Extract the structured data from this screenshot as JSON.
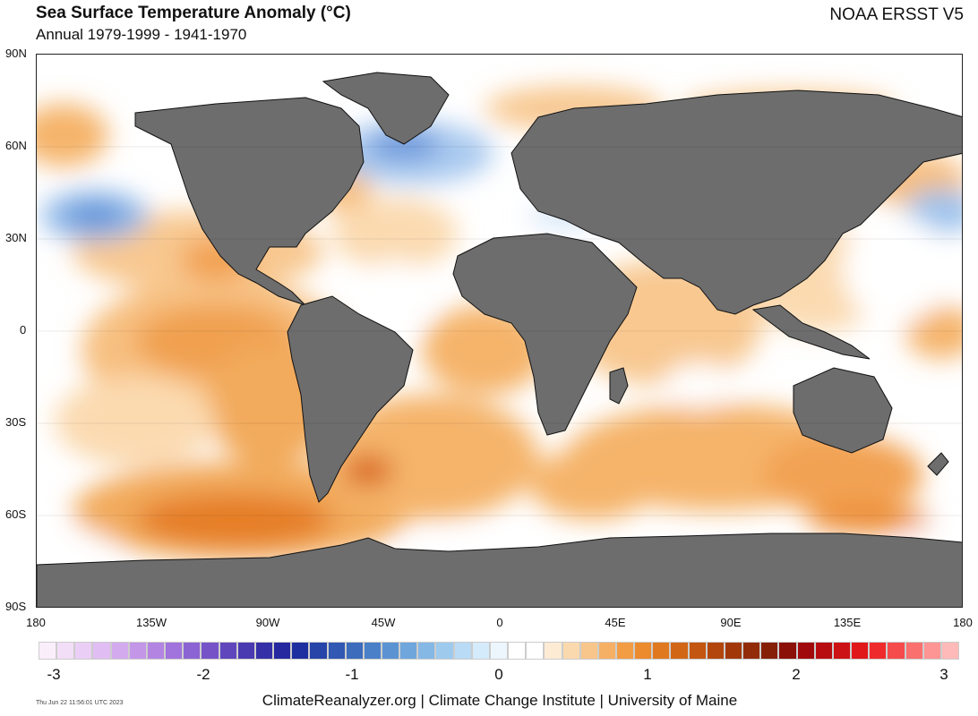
{
  "header": {
    "title": "Sea Surface Temperature Anomaly (°C)",
    "subtitle": "Annual 1979-1999 - 1941-1970",
    "dataset": "NOAA ERSST V5"
  },
  "map": {
    "lat_labels": [
      "90N",
      "60N",
      "30N",
      "0",
      "30S",
      "60S",
      "90S"
    ],
    "lon_labels": [
      "180",
      "135W",
      "90W",
      "45W",
      "0",
      "45E",
      "90E",
      "135E",
      "180"
    ],
    "land_color": "#6d6d6d",
    "ocean_base_color": "#ffffff"
  },
  "colorbar": {
    "tick_labels": [
      "-3",
      "-2",
      "-1",
      "0",
      "1",
      "2",
      "3"
    ],
    "colors": [
      "#fbeefb",
      "#f3def8",
      "#ebcef6",
      "#e0bdf2",
      "#d3aaee",
      "#c396e8",
      "#b384e2",
      "#a173dc",
      "#8c63d3",
      "#7654c8",
      "#5f46bd",
      "#4a3ab2",
      "#3530a8",
      "#25289e",
      "#1e2f9f",
      "#2744a8",
      "#3158b2",
      "#3d6cbd",
      "#4a80c8",
      "#5b93d2",
      "#6fa6dc",
      "#86b8e5",
      "#9ecaee",
      "#b9dbf5",
      "#d4ebfb",
      "#edf6fd",
      "#ffffff",
      "#ffffff",
      "#fdebd4",
      "#fbd9ae",
      "#f8c58a",
      "#f5b065",
      "#f29c44",
      "#ec8a2e",
      "#e0781f",
      "#d26617",
      "#c35610",
      "#b3460c",
      "#a2380a",
      "#922c08",
      "#851f06",
      "#8a1008",
      "#a10a0c",
      "#b80d10",
      "#cc1214",
      "#e0181a",
      "#ee2a2c",
      "#f54b4d",
      "#f9706f",
      "#fc9594",
      "#febab8"
    ],
    "palette_note": "diverging blue-white-orange-red"
  },
  "footer": {
    "timestamp": "Thu Jun 22 11:56:01 UTC 2023",
    "credit": "ClimateReanalyzer.org | Climate Change Institute | University of Maine"
  }
}
